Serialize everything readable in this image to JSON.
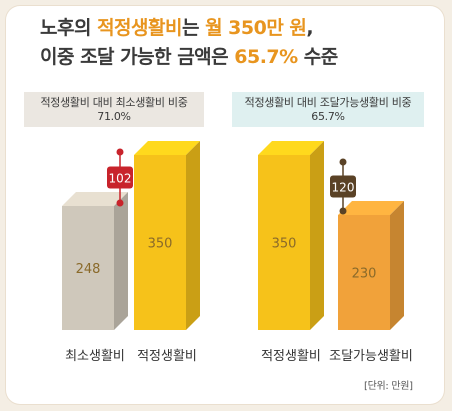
{
  "title": {
    "line1_a": "노후의 ",
    "line1_hl": "적정생활비",
    "line1_b": "는 ",
    "line1_hl2": "월 350만 원",
    "line1_c": ",",
    "line2_a": "이중 조달 가능한 금액은 ",
    "line2_hl": "65.7%",
    "line2_b": " 수준"
  },
  "notes": {
    "left_label": "적정생활비 대비 최소생활비 비중",
    "left_value": "71.0%",
    "right_label": "적정생활비 대비 조달가능생활비 비중",
    "right_value": "65.7%"
  },
  "unit_label": "[단위: 만원]",
  "colors": {
    "accent": "#e8951f",
    "gray_bar": "#cfc8bb",
    "yellow_bar": "#f6c21a",
    "orange_bar": "#f1a23a",
    "diff_left": "#c8232b",
    "diff_right": "#5a4226"
  },
  "chart_data": [
    {
      "type": "bar",
      "categories": [
        "최소생활비",
        "적정생활비"
      ],
      "values": [
        248,
        350
      ],
      "difference": {
        "value": 102,
        "label": "102"
      }
    },
    {
      "type": "bar",
      "categories": [
        "적정생활비",
        "조달가능생활비"
      ],
      "values": [
        350,
        230
      ],
      "difference": {
        "value": 120,
        "label": "120"
      }
    }
  ]
}
